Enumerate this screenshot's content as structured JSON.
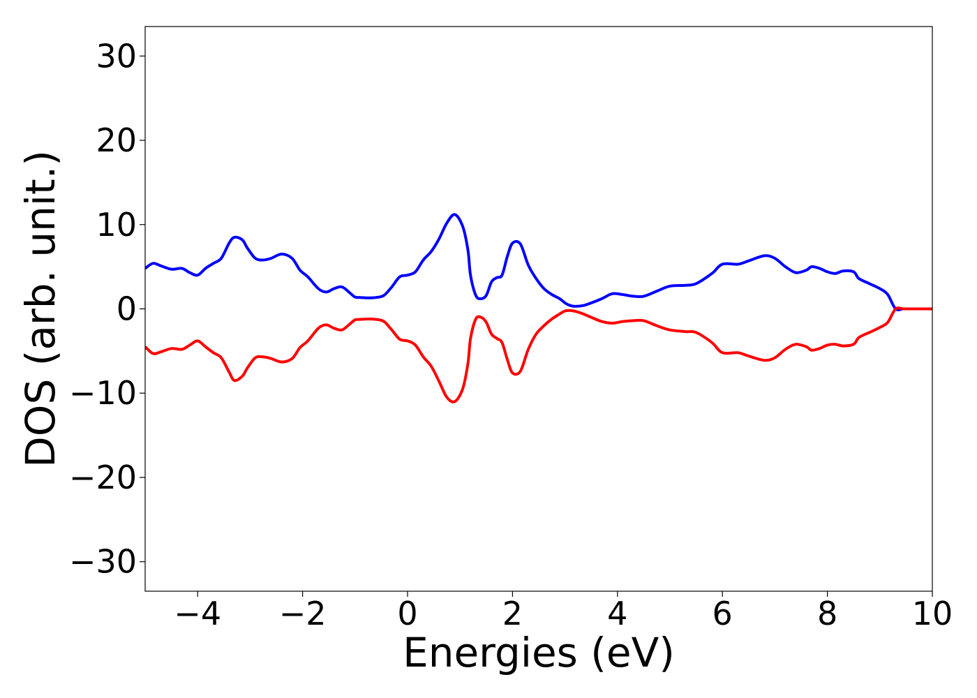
{
  "chart_data": {
    "type": "line",
    "xlabel": "Energies (eV)",
    "ylabel": "DOS (arb. unit.)",
    "xlim": [
      -5,
      10
    ],
    "ylim": [
      -33.5,
      33.5
    ],
    "x_ticks": [
      -4,
      -2,
      0,
      2,
      4,
      6,
      8,
      10
    ],
    "x_tick_labels": [
      "−4",
      "−2",
      "0",
      "2",
      "4",
      "6",
      "8",
      "10"
    ],
    "y_ticks": [
      30,
      20,
      10,
      0,
      -10,
      -20,
      -30
    ],
    "y_tick_labels": [
      "30",
      "20",
      "10",
      "0",
      "−10",
      "−20",
      "−30"
    ],
    "grid": false,
    "legend": "none",
    "series": [
      {
        "color": "#0000ff",
        "x": [
          -5.0,
          -4.85,
          -4.7,
          -4.5,
          -4.3,
          -4.15,
          -4.0,
          -3.85,
          -3.7,
          -3.55,
          -3.4,
          -3.3,
          -3.15,
          -3.05,
          -2.9,
          -2.75,
          -2.6,
          -2.4,
          -2.2,
          -2.05,
          -1.9,
          -1.7,
          -1.55,
          -1.4,
          -1.25,
          -1.1,
          -1.0,
          -0.9,
          -0.75,
          -0.6,
          -0.45,
          -0.3,
          -0.15,
          0.0,
          0.15,
          0.3,
          0.45,
          0.6,
          0.75,
          0.9,
          1.05,
          1.15,
          1.2,
          1.3,
          1.4,
          1.5,
          1.6,
          1.7,
          1.8,
          1.9,
          2.0,
          2.15,
          2.3,
          2.45,
          2.6,
          2.75,
          2.9,
          3.0,
          3.1,
          3.2,
          3.35,
          3.5,
          3.7,
          3.9,
          4.1,
          4.3,
          4.5,
          4.75,
          5.0,
          5.3,
          5.5,
          5.8,
          6.0,
          6.3,
          6.5,
          6.8,
          7.0,
          7.2,
          7.4,
          7.6,
          7.7,
          7.85,
          8.0,
          8.15,
          8.3,
          8.5,
          8.6,
          8.8,
          9.0,
          9.15,
          9.3,
          9.45,
          9.6,
          9.75,
          9.9,
          10.0
        ],
        "y": [
          4.8,
          5.4,
          5.1,
          4.7,
          4.8,
          4.3,
          4.0,
          4.8,
          5.4,
          6.0,
          7.8,
          8.5,
          8.2,
          7.2,
          6.0,
          5.8,
          6.0,
          6.5,
          6.0,
          4.6,
          3.8,
          2.4,
          2.0,
          2.4,
          2.6,
          1.9,
          1.4,
          1.35,
          1.3,
          1.35,
          1.6,
          2.6,
          3.8,
          4.0,
          4.4,
          5.8,
          6.8,
          8.3,
          10.2,
          11.2,
          9.8,
          7.0,
          4.0,
          1.6,
          1.2,
          1.6,
          3.2,
          3.7,
          4.0,
          6.2,
          7.8,
          7.7,
          5.2,
          3.6,
          2.4,
          1.7,
          1.2,
          0.7,
          0.4,
          0.3,
          0.4,
          0.7,
          1.2,
          1.8,
          1.7,
          1.5,
          1.5,
          2.1,
          2.7,
          2.8,
          3.0,
          4.2,
          5.3,
          5.3,
          5.7,
          6.3,
          6.0,
          5.0,
          4.3,
          4.6,
          5.0,
          4.8,
          4.4,
          4.2,
          4.5,
          4.4,
          3.6,
          3.0,
          2.4,
          1.7,
          0.0,
          0.0,
          0.0,
          0.0,
          0.0,
          0.0
        ]
      },
      {
        "color": "#ff0000",
        "x": [
          -5.0,
          -4.85,
          -4.7,
          -4.5,
          -4.3,
          -4.15,
          -4.0,
          -3.85,
          -3.7,
          -3.55,
          -3.4,
          -3.3,
          -3.15,
          -3.05,
          -2.9,
          -2.75,
          -2.6,
          -2.4,
          -2.2,
          -2.05,
          -1.9,
          -1.7,
          -1.55,
          -1.4,
          -1.25,
          -1.1,
          -1.0,
          -0.9,
          -0.75,
          -0.6,
          -0.45,
          -0.3,
          -0.15,
          0.0,
          0.15,
          0.3,
          0.45,
          0.6,
          0.75,
          0.9,
          1.05,
          1.15,
          1.2,
          1.3,
          1.4,
          1.5,
          1.6,
          1.7,
          1.8,
          1.9,
          2.0,
          2.15,
          2.3,
          2.45,
          2.6,
          2.75,
          2.9,
          3.0,
          3.1,
          3.2,
          3.35,
          3.5,
          3.7,
          3.9,
          4.1,
          4.3,
          4.5,
          4.75,
          5.0,
          5.3,
          5.5,
          5.8,
          6.0,
          6.3,
          6.5,
          6.8,
          7.0,
          7.2,
          7.4,
          7.6,
          7.7,
          7.85,
          8.0,
          8.15,
          8.3,
          8.5,
          8.6,
          8.8,
          9.0,
          9.15,
          9.3,
          9.45,
          9.6,
          9.75,
          9.9,
          10.0
        ],
        "y": [
          -4.5,
          -5.3,
          -5.1,
          -4.7,
          -4.8,
          -4.3,
          -3.8,
          -4.5,
          -5.2,
          -5.8,
          -7.5,
          -8.5,
          -8.0,
          -7.0,
          -5.8,
          -5.7,
          -5.9,
          -6.3,
          -5.9,
          -4.6,
          -3.8,
          -2.3,
          -1.9,
          -2.3,
          -2.5,
          -1.8,
          -1.3,
          -1.25,
          -1.2,
          -1.25,
          -1.5,
          -2.5,
          -3.6,
          -3.8,
          -4.3,
          -5.7,
          -6.8,
          -8.6,
          -10.5,
          -11.0,
          -9.5,
          -6.5,
          -3.5,
          -1.2,
          -1.0,
          -1.6,
          -3.0,
          -3.5,
          -4.0,
          -6.0,
          -7.6,
          -7.4,
          -4.8,
          -3.0,
          -2.0,
          -1.2,
          -0.6,
          -0.25,
          -0.2,
          -0.3,
          -0.6,
          -1.0,
          -1.5,
          -1.7,
          -1.5,
          -1.4,
          -1.4,
          -2.0,
          -2.5,
          -2.7,
          -2.8,
          -4.0,
          -5.2,
          -5.2,
          -5.6,
          -6.1,
          -5.8,
          -4.8,
          -4.2,
          -4.5,
          -4.9,
          -4.7,
          -4.3,
          -4.2,
          -4.4,
          -4.2,
          -3.4,
          -2.8,
          -2.2,
          -1.6,
          0.0,
          0.0,
          0.0,
          0.0,
          0.0,
          0.0
        ]
      }
    ]
  }
}
